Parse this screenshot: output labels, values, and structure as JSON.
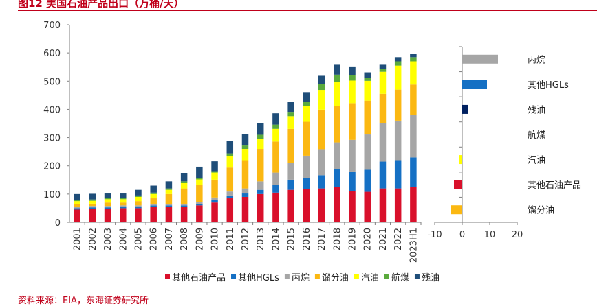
{
  "header": {
    "title": "图12 美国石油产品出口（万桶/天）"
  },
  "footer": {
    "source": "资料来源：EIA，东海证券研究所"
  },
  "colors": {
    "其他石油产品": "#d9102b",
    "其他HGLs": "#1570c4",
    "丙烷": "#a6a6a6",
    "馏分油": "#fbb812",
    "汽油": "#ffff00",
    "航煤": "#5aaa3c",
    "残油": "#1f4e79",
    "dark_blue": "#002060"
  },
  "chart_data": [
    {
      "type": "bar",
      "stacked": true,
      "title": "",
      "xlabel": "",
      "ylabel": "",
      "ylim": [
        0,
        700
      ],
      "yticks": [
        0,
        100,
        200,
        300,
        400,
        500,
        600,
        700
      ],
      "grid": false,
      "legend_position": "bottom",
      "categories": [
        "2001",
        "2002",
        "2003",
        "2004",
        "2005",
        "2006",
        "2007",
        "2008",
        "2009",
        "2010",
        "2011",
        "2012",
        "2013",
        "2014",
        "2015",
        "2016",
        "2017",
        "2018",
        "2019",
        "2020",
        "2021",
        "2022",
        "2023H1"
      ],
      "series": [
        {
          "name": "其他石油产品",
          "values": [
            45,
            48,
            48,
            50,
            50,
            55,
            55,
            55,
            60,
            70,
            85,
            90,
            100,
            105,
            115,
            118,
            120,
            125,
            110,
            108,
            120,
            120,
            125
          ]
        },
        {
          "name": "其他HGLs",
          "values": [
            5,
            5,
            5,
            5,
            5,
            5,
            5,
            5,
            5,
            8,
            10,
            12,
            15,
            28,
            36,
            38,
            47,
            63,
            70,
            78,
            95,
            100,
            105
          ]
        },
        {
          "name": "丙烷",
          "values": [
            5,
            5,
            5,
            5,
            5,
            5,
            5,
            5,
            7,
            10,
            14,
            18,
            30,
            43,
            60,
            80,
            92,
            95,
            112,
            125,
            135,
            140,
            150
          ]
        },
        {
          "name": "馏分油",
          "values": [
            10,
            8,
            12,
            10,
            15,
            20,
            35,
            55,
            60,
            63,
            85,
            100,
            115,
            110,
            120,
            120,
            140,
            130,
            130,
            120,
            105,
            110,
            108
          ]
        },
        {
          "name": "汽油",
          "values": [
            10,
            10,
            12,
            12,
            15,
            15,
            15,
            20,
            20,
            25,
            40,
            40,
            35,
            45,
            45,
            55,
            70,
            85,
            80,
            70,
            78,
            85,
            82
          ]
        },
        {
          "name": "航煤",
          "values": [
            5,
            5,
            5,
            5,
            5,
            5,
            5,
            5,
            5,
            5,
            10,
            12,
            15,
            15,
            15,
            15,
            20,
            25,
            20,
            10,
            10,
            15,
            15
          ]
        },
        {
          "name": "残油",
          "values": [
            20,
            20,
            15,
            15,
            20,
            25,
            25,
            30,
            40,
            35,
            45,
            40,
            40,
            40,
            35,
            35,
            30,
            35,
            30,
            20,
            15,
            15,
            12
          ]
        }
      ]
    },
    {
      "type": "bar",
      "orientation": "horizontal",
      "title": "",
      "xlim": [
        -10,
        20
      ],
      "xticks": [
        -10,
        0,
        10,
        20
      ],
      "categories": [
        "丙烷",
        "其他HGLs",
        "残油",
        "航煤",
        "汽油",
        "其他石油产品",
        "馏分油"
      ],
      "values": [
        13,
        9,
        2,
        0,
        -1,
        -3,
        -4
      ]
    }
  ]
}
